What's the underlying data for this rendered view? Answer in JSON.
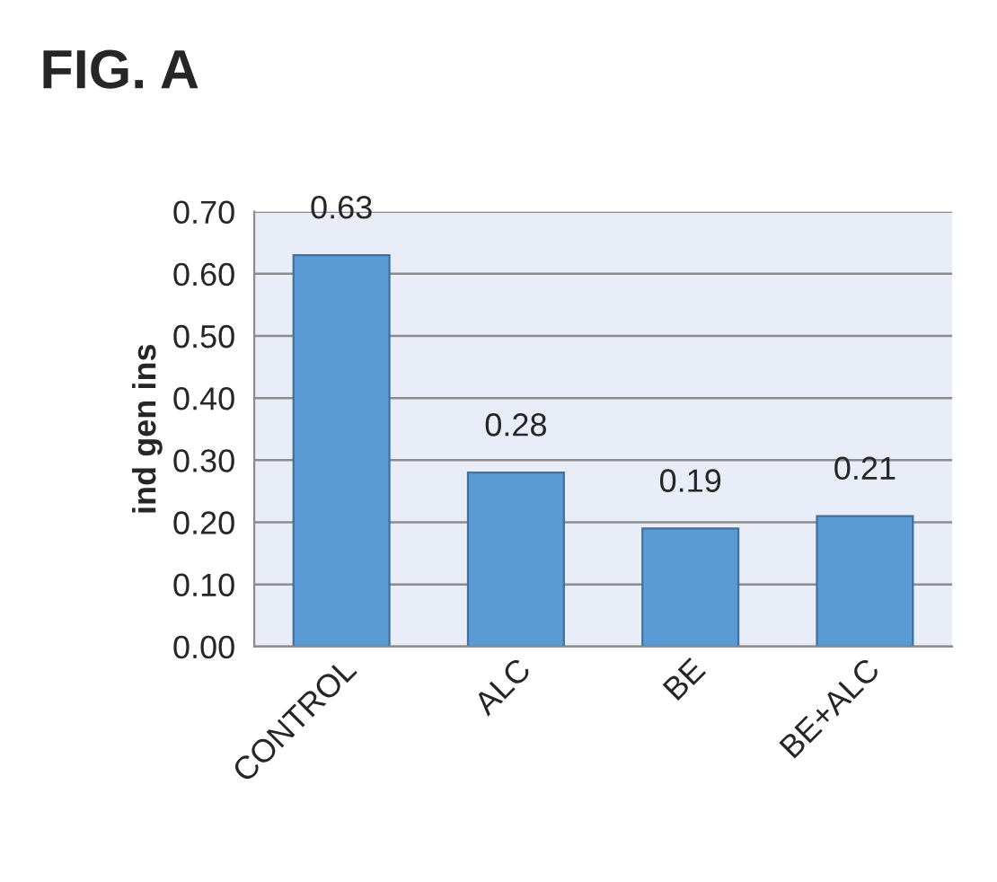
{
  "chart_data": {
    "type": "bar",
    "title": "FIG. A",
    "ylabel": "ind gen ins",
    "categories": [
      "CONTROL",
      "ALC",
      "BE",
      "BE+ALC"
    ],
    "values": [
      0.63,
      0.28,
      0.19,
      0.21
    ],
    "value_labels": [
      "0.63",
      "0.28",
      "0.19",
      "0.21"
    ],
    "color": "#5b9bd5",
    "ylim": [
      0,
      0.7
    ],
    "yticks": [
      {
        "value": 0,
        "label": "0.00"
      },
      {
        "value": 0.1,
        "label": "0.10"
      },
      {
        "value": 0.2,
        "label": "0.20"
      },
      {
        "value": 0.3,
        "label": "0.30"
      },
      {
        "value": 0.4,
        "label": "0.40"
      },
      {
        "value": 0.5,
        "label": "0.50"
      },
      {
        "value": 0.6,
        "label": "0.60"
      },
      {
        "value": 0.7,
        "label": "0.70"
      }
    ],
    "grid": "y"
  }
}
